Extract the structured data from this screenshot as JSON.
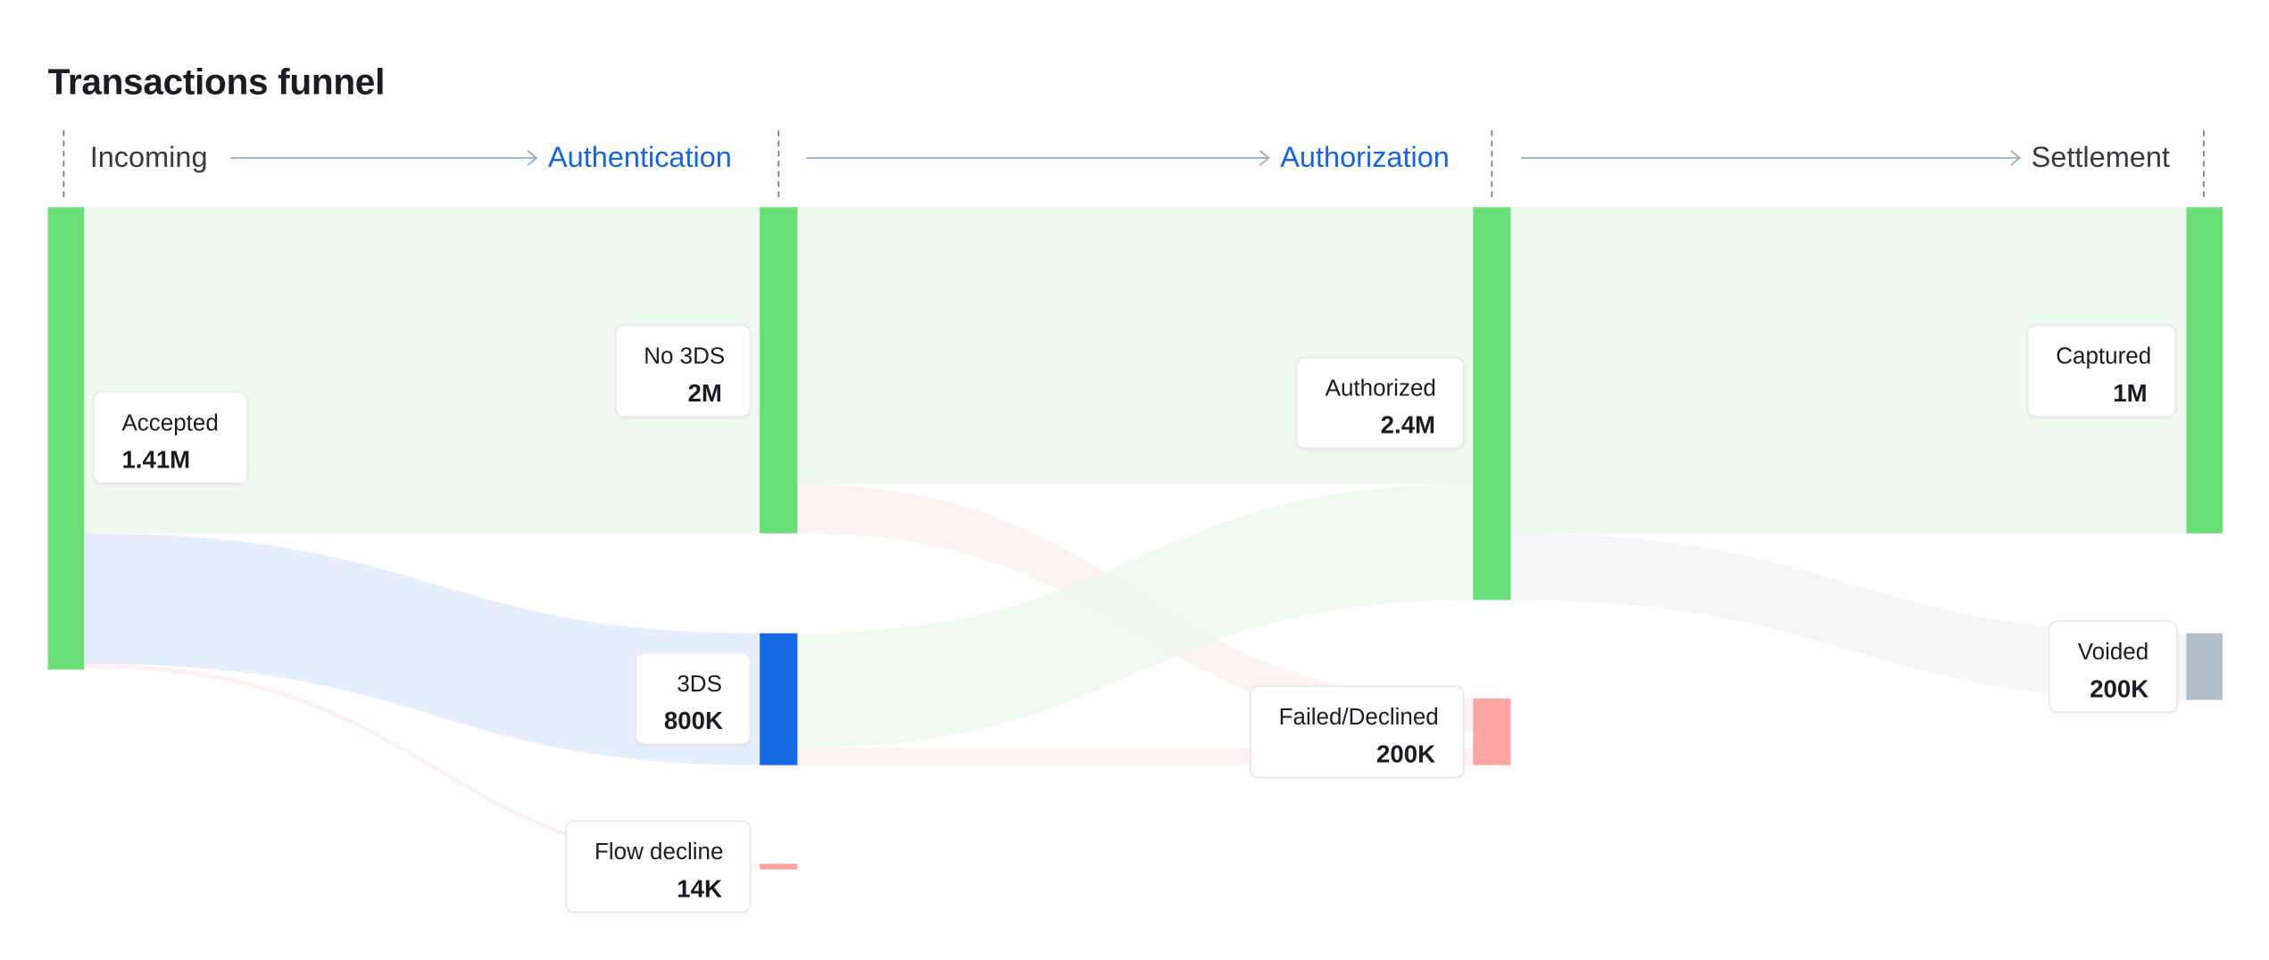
{
  "title": "Transactions funnel",
  "stages": [
    {
      "name": "Incoming",
      "style": "plain"
    },
    {
      "name": "Authentication",
      "style": "link"
    },
    {
      "name": "Authorization",
      "style": "link"
    },
    {
      "name": "Settlement",
      "style": "plain"
    }
  ],
  "colors": {
    "success": "#68e077",
    "info": "#1668e3",
    "failure": "#ffa5a5",
    "neutral": "#b2bec7",
    "flow_success": "#eefaf0",
    "flow_info": "#e4eefc",
    "flow_failure": "#fff2f2",
    "flow_neutral": "#f4f6f8",
    "divider": "#6b7385",
    "arrow": "#9fb1c8",
    "link_text": "#1565e0"
  },
  "nodes": {
    "accepted": {
      "name": "Accepted",
      "value": "1.41M"
    },
    "no_3ds": {
      "name": "No 3DS",
      "value": "2M"
    },
    "three_ds": {
      "name": "3DS",
      "value": "800K"
    },
    "flow_decline": {
      "name": "Flow decline",
      "value": "14K"
    },
    "authorized": {
      "name": "Authorized",
      "value": "2.4M"
    },
    "failed_declined": {
      "name": "Failed/Declined",
      "value": "200K"
    },
    "captured": {
      "name": "Captured",
      "value": "1M"
    },
    "voided": {
      "name": "Voided",
      "value": "200K"
    }
  }
}
